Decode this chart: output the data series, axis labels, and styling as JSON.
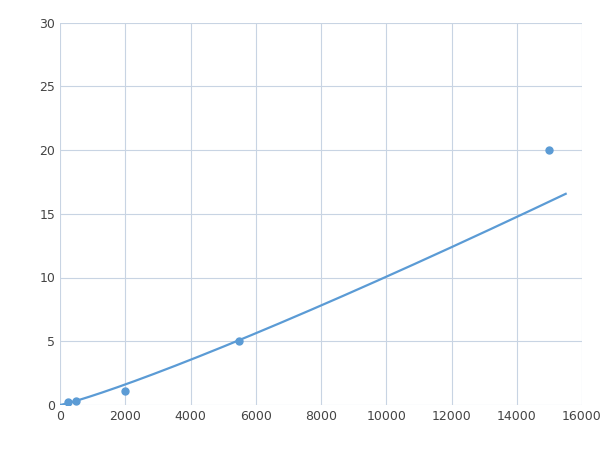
{
  "x_points": [
    250,
    500,
    2000,
    5500,
    15000
  ],
  "y_points": [
    0.2,
    0.3,
    1.1,
    5.0,
    20.0
  ],
  "line_color": "#5b9bd5",
  "marker_color": "#5b9bd5",
  "marker_size": 5,
  "line_width": 1.6,
  "xlim": [
    0,
    16000
  ],
  "ylim": [
    0,
    30
  ],
  "xticks": [
    0,
    2000,
    4000,
    6000,
    8000,
    10000,
    12000,
    14000,
    16000
  ],
  "yticks": [
    0,
    5,
    10,
    15,
    20,
    25,
    30
  ],
  "grid_color": "#c8d4e3",
  "background_color": "#ffffff",
  "figsize": [
    6.0,
    4.5
  ],
  "dpi": 100
}
